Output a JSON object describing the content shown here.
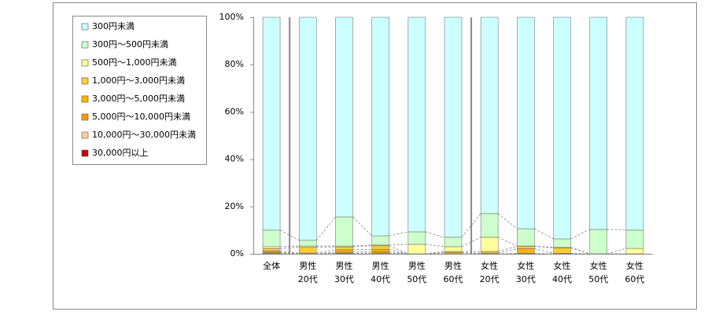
{
  "chart_data": {
    "type": "bar",
    "stacked": true,
    "categories": [
      [
        "全体"
      ],
      [
        "男性",
        "20代"
      ],
      [
        "男性",
        "30代"
      ],
      [
        "男性",
        "40代"
      ],
      [
        "男性",
        "50代"
      ],
      [
        "男性",
        "60代"
      ],
      [
        "女性",
        "20代"
      ],
      [
        "女性",
        "30代"
      ],
      [
        "女性",
        "40代"
      ],
      [
        "女性",
        "50代"
      ],
      [
        "女性",
        "60代"
      ]
    ],
    "series": [
      {
        "name": "30,000円以上",
        "color": "#c00000",
        "values": [
          0.1,
          0,
          0,
          0,
          0,
          0,
          0,
          0,
          0,
          0,
          0
        ]
      },
      {
        "name": "10,000円～30,000円未満",
        "color": "#ffcc99",
        "values": [
          0.2,
          0,
          0.2,
          0.3,
          0,
          0,
          0,
          0,
          0,
          0,
          0
        ]
      },
      {
        "name": "5,000円～10,000円未満",
        "color": "#ff9900",
        "values": [
          0.4,
          0,
          0.5,
          0.6,
          0,
          0,
          0,
          0.2,
          0,
          0,
          0
        ]
      },
      {
        "name": "3,000円～5,000円未満",
        "color": "#ffb400",
        "values": [
          0.5,
          0.3,
          1,
          1,
          0,
          0.5,
          0.3,
          2,
          0.2,
          0,
          0
        ]
      },
      {
        "name": "1,000円～3,000円未満",
        "color": "#ffcc33",
        "values": [
          1,
          2.5,
          1.2,
          1.5,
          0,
          0.5,
          0.7,
          1,
          2.3,
          0,
          0
        ]
      },
      {
        "name": "500円～1,000円未満",
        "color": "#ffff99",
        "values": [
          0.8,
          0.5,
          0.4,
          0.3,
          4,
          2,
          6,
          0.1,
          0.2,
          0,
          2.3
        ]
      },
      {
        "name": "300円～500円未満",
        "color": "#ccffcc",
        "values": [
          7,
          2.4,
          12.3,
          3.9,
          5.3,
          4,
          10,
          7.3,
          3.6,
          10.3,
          7.7
        ]
      },
      {
        "name": "300円未満",
        "color": "#ccffff",
        "values": [
          90,
          94.3,
          84.4,
          92.4,
          90.7,
          93,
          83,
          89.4,
          93.7,
          89.7,
          90
        ]
      }
    ],
    "ylim": [
      0,
      100
    ],
    "yticks": [
      {
        "value": 0,
        "label": "0%"
      },
      {
        "value": 20,
        "label": "20%"
      },
      {
        "value": 40,
        "label": "40%"
      },
      {
        "value": 60,
        "label": "60%"
      },
      {
        "value": 80,
        "label": "80%"
      },
      {
        "value": 100,
        "label": "100%"
      }
    ]
  }
}
